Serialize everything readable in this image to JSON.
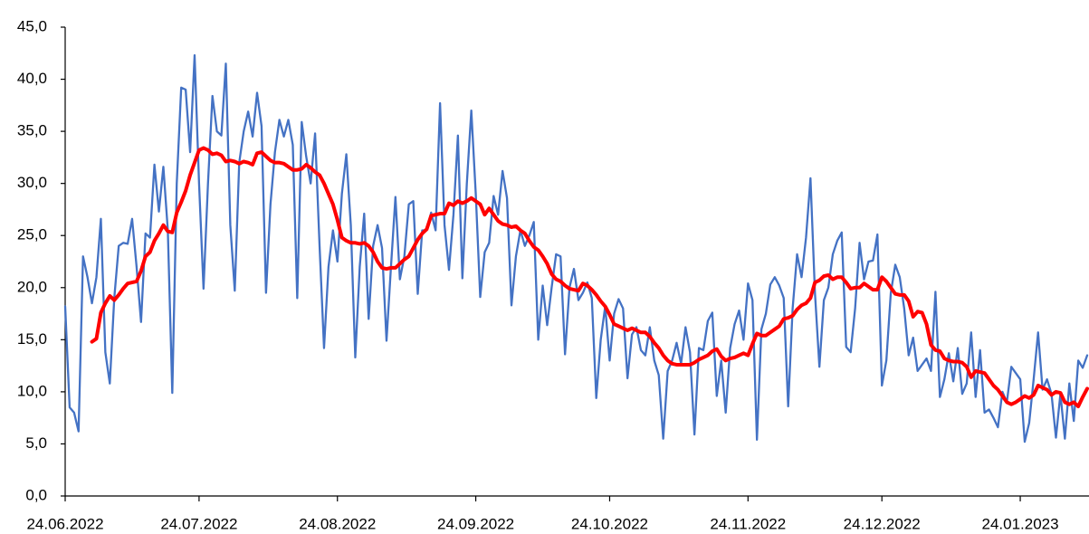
{
  "chart_data": {
    "type": "line",
    "categories": [
      "24.06.2022",
      null,
      null,
      null,
      null,
      null,
      null,
      null,
      null,
      null,
      null,
      null,
      null,
      null,
      null,
      null,
      null,
      null,
      null,
      null,
      null,
      null,
      null,
      null,
      null,
      null,
      null,
      null,
      null,
      null,
      "24.07.2022",
      null,
      null,
      null,
      null,
      null,
      null,
      null,
      null,
      null,
      null,
      null,
      null,
      null,
      null,
      null,
      null,
      null,
      null,
      null,
      null,
      null,
      null,
      null,
      null,
      null,
      null,
      null,
      null,
      null,
      null,
      "24.08.2022",
      null,
      null,
      null,
      null,
      null,
      null,
      null,
      null,
      null,
      null,
      null,
      null,
      null,
      null,
      null,
      null,
      null,
      null,
      null,
      null,
      null,
      null,
      null,
      null,
      null,
      null,
      null,
      null,
      null,
      null,
      "24.09.2022",
      null,
      null,
      null,
      null,
      null,
      null,
      null,
      null,
      null,
      null,
      null,
      null,
      null,
      null,
      null,
      null,
      null,
      null,
      null,
      null,
      null,
      null,
      null,
      null,
      null,
      null,
      null,
      null,
      null,
      "24.10.2022",
      null,
      null,
      null,
      null,
      null,
      null,
      null,
      null,
      null,
      null,
      null,
      null,
      null,
      null,
      null,
      null,
      null,
      null,
      null,
      null,
      null,
      null,
      null,
      null,
      null,
      null,
      null,
      null,
      null,
      null,
      "24.11.2022",
      null,
      null,
      null,
      null,
      null,
      null,
      null,
      null,
      null,
      null,
      null,
      null,
      null,
      null,
      null,
      null,
      null,
      null,
      null,
      null,
      null,
      null,
      null,
      null,
      null,
      null,
      null,
      null,
      null,
      "24.12.2022",
      null,
      null,
      null,
      null,
      null,
      null,
      null,
      null,
      null,
      null,
      null,
      null,
      null,
      null,
      null,
      null,
      null,
      null,
      null,
      null,
      null,
      null,
      null,
      null,
      null,
      null,
      null,
      null,
      null,
      null,
      "24.01.2023",
      null,
      null,
      null,
      null,
      null,
      null,
      null,
      null,
      null,
      null,
      null,
      null,
      null,
      null,
      null
    ],
    "series": [
      {
        "color": "#4472c4",
        "values": [
          18.2,
          8.5,
          8.0,
          6.2,
          23.0,
          21.0,
          18.5,
          21.0,
          26.6,
          13.8,
          10.8,
          19.0,
          24.0,
          24.3,
          24.2,
          26.6,
          22.0,
          16.7,
          25.2,
          24.8,
          31.8,
          27.3,
          31.6,
          25.5,
          9.9,
          30.0,
          39.2,
          39.0,
          33.0,
          42.3,
          30.0,
          19.9,
          30.0,
          38.4,
          35.0,
          34.6,
          41.5,
          26.0,
          19.7,
          32.0,
          35.0,
          36.9,
          34.5,
          38.7,
          35.5,
          19.5,
          28.0,
          33.0,
          36.1,
          34.5,
          36.1,
          33.7,
          19.0,
          35.9,
          32.6,
          30.0,
          34.8,
          24.0,
          14.2,
          22.0,
          25.5,
          22.5,
          29.0,
          32.8,
          26.0,
          13.3,
          22.0,
          27.1,
          17.0,
          24.0,
          26.0,
          23.8,
          14.9,
          22.0,
          28.7,
          20.8,
          23.0,
          28.0,
          28.3,
          19.4,
          25.5,
          25.5,
          27.2,
          25.5,
          37.7,
          26.0,
          21.7,
          27.0,
          34.6,
          20.9,
          30.0,
          37.0,
          29.0,
          19.1,
          23.4,
          24.3,
          28.8,
          27.0,
          31.2,
          28.6,
          18.3,
          23.0,
          25.5,
          24.0,
          25.0,
          26.3,
          15.0,
          20.2,
          16.4,
          20.0,
          23.2,
          23.0,
          13.6,
          20.0,
          21.8,
          18.8,
          19.5,
          20.5,
          19.0,
          9.4,
          15.0,
          18.2,
          13.0,
          17.5,
          18.9,
          18.0,
          11.3,
          15.5,
          16.2,
          14.0,
          13.5,
          16.2,
          13.0,
          11.6,
          5.5,
          12.0,
          13.0,
          14.7,
          12.7,
          16.2,
          13.8,
          5.9,
          14.2,
          14.0,
          16.8,
          17.6,
          9.6,
          13.0,
          8.0,
          14.2,
          16.5,
          17.8,
          15.0,
          20.4,
          18.8,
          5.4,
          16.0,
          17.5,
          20.3,
          21.0,
          20.2,
          19.0,
          8.6,
          18.0,
          23.2,
          21.0,
          24.8,
          30.5,
          19.5,
          12.4,
          18.8,
          20.0,
          23.2,
          24.5,
          25.3,
          14.3,
          13.8,
          18.0,
          24.3,
          20.8,
          22.5,
          22.6,
          25.1,
          10.6,
          13.0,
          19.5,
          22.2,
          21.0,
          18.0,
          13.5,
          15.2,
          12.0,
          12.6,
          13.2,
          12.0,
          19.6,
          9.5,
          11.2,
          13.7,
          11.0,
          14.2,
          9.8,
          10.8,
          15.7,
          9.5,
          14.0,
          8.0,
          8.3,
          7.5,
          6.6,
          10.0,
          9.0,
          12.4,
          11.8,
          11.2,
          5.2,
          7.0,
          11.2,
          15.7,
          10.2,
          11.2,
          9.8,
          5.6,
          9.8,
          5.5,
          10.8,
          7.2,
          13.0,
          12.3,
          13.5
        ]
      },
      {
        "color": "#ff0000",
        "values": [
          null,
          null,
          null,
          null,
          null,
          null,
          14.8,
          15.1,
          17.6,
          18.5,
          19.2,
          18.8,
          19.3,
          19.9,
          20.4,
          20.5,
          20.6,
          21.6,
          23.0,
          23.4,
          24.5,
          25.2,
          26.0,
          25.4,
          25.3,
          27.2,
          28.2,
          29.3,
          30.8,
          32.0,
          33.2,
          33.4,
          33.2,
          32.8,
          32.9,
          32.7,
          32.1,
          32.2,
          32.1,
          31.9,
          32.1,
          32.0,
          31.8,
          32.9,
          33.0,
          32.6,
          32.2,
          32.0,
          32.0,
          31.9,
          31.6,
          31.3,
          31.3,
          31.4,
          31.8,
          31.5,
          31.1,
          30.8,
          30.0,
          29.0,
          28.0,
          26.5,
          24.8,
          24.5,
          24.3,
          24.3,
          24.2,
          24.3,
          24.0,
          23.4,
          22.5,
          21.9,
          21.8,
          21.9,
          21.9,
          22.3,
          22.7,
          23.0,
          23.8,
          24.6,
          25.2,
          25.6,
          26.9,
          27.0,
          27.1,
          27.1,
          28.1,
          27.9,
          28.3,
          28.1,
          28.3,
          28.6,
          28.3,
          28.0,
          27.0,
          27.6,
          27.0,
          26.4,
          26.1,
          26.0,
          25.8,
          25.9,
          25.5,
          25.2,
          24.5,
          23.9,
          23.6,
          23.0,
          22.3,
          21.3,
          20.8,
          20.6,
          20.2,
          19.9,
          19.8,
          19.7,
          20.4,
          20.2,
          19.8,
          19.3,
          18.7,
          18.2,
          17.4,
          16.5,
          16.3,
          16.1,
          15.9,
          16.1,
          15.9,
          15.7,
          15.7,
          15.3,
          14.7,
          14.2,
          13.5,
          13.0,
          12.7,
          12.6,
          12.6,
          12.6,
          12.6,
          12.8,
          13.1,
          13.3,
          13.5,
          13.9,
          14.1,
          13.4,
          13.0,
          13.2,
          13.3,
          13.5,
          13.7,
          13.5,
          14.6,
          15.6,
          15.4,
          15.4,
          15.7,
          16.0,
          16.3,
          17.0,
          17.1,
          17.3,
          17.9,
          18.3,
          18.5,
          19.0,
          20.5,
          20.7,
          21.1,
          21.2,
          20.8,
          21.0,
          21.0,
          20.5,
          19.9,
          20.0,
          20.0,
          20.4,
          20.1,
          19.8,
          19.8,
          21.0,
          20.6,
          20.0,
          19.4,
          19.3,
          19.3,
          18.7,
          17.2,
          17.7,
          17.6,
          16.5,
          14.5,
          14.0,
          13.9,
          13.2,
          13.0,
          12.9,
          12.9,
          12.8,
          12.4,
          11.4,
          12.0,
          11.9,
          11.8,
          11.2,
          10.6,
          10.2,
          9.6,
          9.0,
          8.8,
          9.0,
          9.3,
          9.6,
          9.4,
          9.7,
          10.6,
          10.4,
          10.2,
          9.7,
          10.0,
          9.9,
          9.0,
          8.8,
          9.0,
          8.6,
          9.5,
          10.3
        ]
      }
    ],
    "ylim": [
      0,
      45
    ],
    "yticks": [
      {
        "value": 0,
        "label": "0,0"
      },
      {
        "value": 5,
        "label": "5,0"
      },
      {
        "value": 10,
        "label": "10,0"
      },
      {
        "value": 15,
        "label": "15,0"
      },
      {
        "value": 20,
        "label": "20,0"
      },
      {
        "value": 25,
        "label": "25,0"
      },
      {
        "value": 30,
        "label": "30,0"
      },
      {
        "value": 35,
        "label": "35,0"
      },
      {
        "value": 40,
        "label": "40,0"
      },
      {
        "value": 45,
        "label": "45,0"
      }
    ],
    "grid": false
  }
}
